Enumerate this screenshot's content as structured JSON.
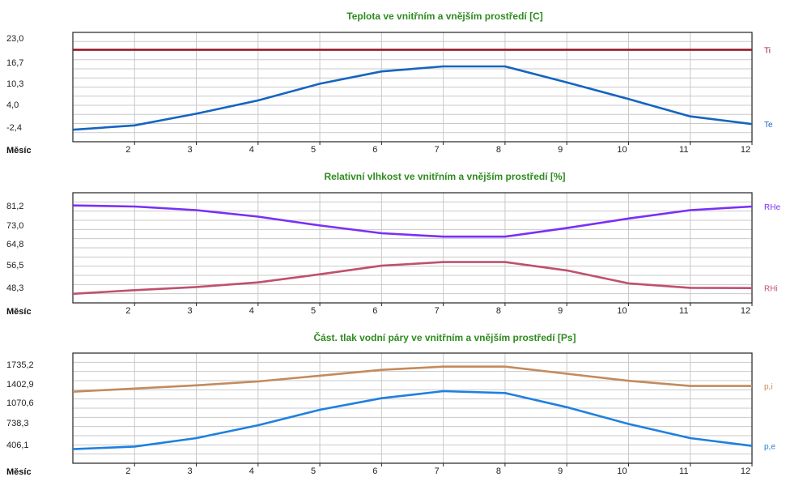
{
  "chart_data": [
    {
      "type": "line",
      "title": "Teplota ve vnitřním a vnějším prostředí [C]",
      "xlabel": "Měsíc",
      "x": [
        1,
        2,
        3,
        4,
        5,
        6,
        7,
        8,
        9,
        10,
        11,
        12
      ],
      "x_ticks": [
        "2",
        "3",
        "4",
        "5",
        "6",
        "7",
        "8",
        "9",
        "10",
        "11",
        "12"
      ],
      "y_ticks": [
        "23,0",
        "16,7",
        "10,3",
        "4,0",
        "-2,4"
      ],
      "ylim": [
        -6.6,
        26.2
      ],
      "grid": true,
      "series": [
        {
          "name": "Ti",
          "color": "#9b1c2e",
          "values": [
            21.0,
            21.0,
            21.0,
            21.0,
            21.0,
            21.0,
            21.0,
            21.0,
            21.0,
            21.0,
            21.0,
            21.0
          ]
        },
        {
          "name": "Te",
          "color": "#1565c0",
          "values": [
            -3.0,
            -1.7,
            1.8,
            5.8,
            10.8,
            14.5,
            16.0,
            16.0,
            11.2,
            6.2,
            1.0,
            -1.3
          ]
        }
      ]
    },
    {
      "type": "line",
      "title": "Relativní vlhkost ve vnitřním a vnějším prostředí [%]",
      "xlabel": "Měsíc",
      "x": [
        1,
        2,
        3,
        4,
        5,
        6,
        7,
        8,
        9,
        10,
        11,
        12
      ],
      "x_ticks": [
        "2",
        "3",
        "4",
        "5",
        "6",
        "7",
        "8",
        "9",
        "10",
        "11",
        "12"
      ],
      "y_ticks": [
        "81,2",
        "73,0",
        "64,8",
        "56,5",
        "48,3"
      ],
      "ylim": [
        43.5,
        85.9
      ],
      "grid": true,
      "series": [
        {
          "name": "RHe",
          "color": "#7b2ff7",
          "values": [
            81.0,
            80.6,
            79.2,
            76.7,
            73.3,
            70.3,
            69.0,
            69.0,
            72.3,
            76.0,
            79.2,
            80.6
          ]
        },
        {
          "name": "RHi",
          "color": "#c0506e",
          "values": [
            47.0,
            48.4,
            49.6,
            51.4,
            54.5,
            57.8,
            59.2,
            59.2,
            56.0,
            51.0,
            49.3,
            49.2
          ]
        }
      ]
    },
    {
      "type": "line",
      "title": "Část. tlak vodní páry ve vnitřním a vnějším prostředí [Ps]",
      "xlabel": "Měsíc",
      "x": [
        1,
        2,
        3,
        4,
        5,
        6,
        7,
        8,
        9,
        10,
        11,
        12
      ],
      "x_ticks": [
        "2",
        "3",
        "4",
        "5",
        "6",
        "7",
        "8",
        "9",
        "10",
        "11",
        "12"
      ],
      "y_ticks": [
        "1735,2",
        "1402,9",
        "1070,6",
        "738,3",
        "406,1"
      ],
      "ylim": [
        171,
        1880
      ],
      "grid": true,
      "series": [
        {
          "name": "p,i",
          "color": "#c48a5c",
          "values": [
            1280,
            1330,
            1380,
            1440,
            1530,
            1620,
            1670,
            1670,
            1560,
            1450,
            1370,
            1370
          ]
        },
        {
          "name": "p,e",
          "color": "#1e80e0",
          "values": [
            390,
            430,
            560,
            760,
            1000,
            1180,
            1290,
            1260,
            1040,
            780,
            560,
            440
          ]
        }
      ]
    }
  ]
}
